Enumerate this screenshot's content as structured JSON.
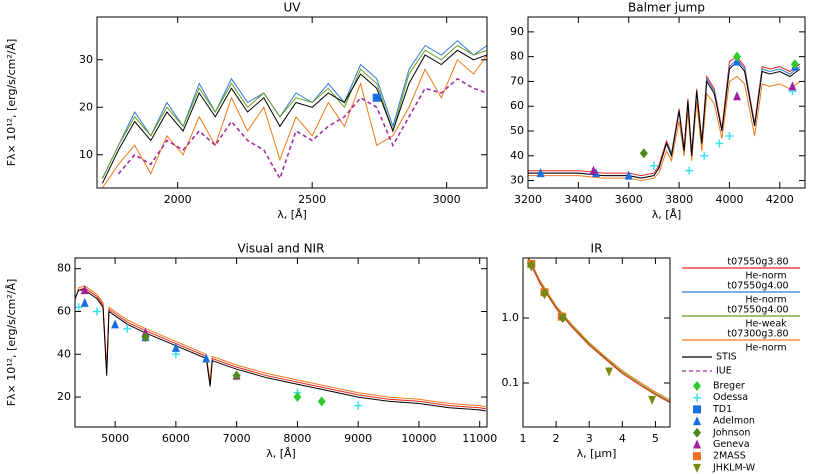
{
  "chart_data": [
    {
      "type": "line",
      "title": "UV",
      "xlabel": "λ, [Å]",
      "ylabel": "Fλ× 10¹², [erg/s/cm²/Å]",
      "xlim": [
        1700,
        3150
      ],
      "ylim": [
        3,
        39
      ],
      "xticks": [
        2000,
        2500,
        3000
      ],
      "yticks": [
        10,
        20,
        30
      ],
      "x": [
        1720,
        1780,
        1840,
        1900,
        1960,
        2020,
        2080,
        2140,
        2200,
        2260,
        2320,
        2380,
        2440,
        2500,
        2560,
        2620,
        2680,
        2740,
        2800,
        2860,
        2920,
        2980,
        3040,
        3100,
        3150
      ],
      "series": [
        {
          "color": "#f07a1a",
          "style": "line",
          "values": [
            3,
            8,
            12,
            6,
            14,
            10,
            18,
            12,
            22,
            15,
            20,
            9,
            18,
            14,
            21,
            16,
            25,
            12,
            14,
            20,
            28,
            22,
            30,
            27,
            31
          ]
        },
        {
          "color": "#2f7bd6",
          "style": "line",
          "values": [
            5,
            12,
            19,
            14,
            21,
            16,
            25,
            19,
            26,
            21,
            23,
            18,
            23,
            21,
            25,
            21,
            29,
            26,
            16,
            28,
            33,
            31,
            34,
            31,
            33
          ]
        },
        {
          "color": "#6a9c1e",
          "style": "line",
          "values": [
            5,
            12,
            18,
            14,
            20,
            16,
            24,
            19,
            25,
            20,
            23,
            18,
            22,
            21,
            24,
            20,
            28,
            25,
            15,
            27,
            32,
            30,
            33,
            31,
            32
          ]
        },
        {
          "color": "#000000",
          "style": "line",
          "values": [
            4,
            11,
            17,
            13,
            19,
            15,
            23,
            18,
            24,
            19,
            22,
            16,
            21,
            20,
            23,
            21,
            27,
            24,
            15,
            25,
            31,
            29,
            32,
            30,
            31
          ]
        },
        {
          "color": "#a030a0",
          "style": "dashed",
          "values": [
            null,
            6,
            10,
            8,
            13,
            11,
            15,
            12,
            17,
            13,
            11,
            5,
            15,
            13,
            16,
            18,
            22,
            20,
            12,
            18,
            24,
            23,
            26,
            24,
            23
          ]
        },
        {
          "color": "#1a6fe0",
          "style": "square",
          "x": [
            2740
          ],
          "values": [
            22
          ]
        }
      ]
    },
    {
      "type": "line",
      "title": "Balmer jump",
      "xlabel": "λ, [Å]",
      "xlim": [
        3200,
        4300
      ],
      "ylim": [
        27,
        96
      ],
      "xticks": [
        3200,
        3400,
        3600,
        3800,
        4000,
        4200
      ],
      "yticks": [
        30,
        40,
        50,
        60,
        70,
        80,
        90
      ],
      "x": [
        3200,
        3300,
        3400,
        3500,
        3600,
        3650,
        3700,
        3720,
        3750,
        3770,
        3800,
        3820,
        3835,
        3850,
        3870,
        3890,
        3910,
        3940,
        3970,
        4000,
        4030,
        4060,
        4100,
        4130,
        4160,
        4200,
        4240,
        4280
      ],
      "series": [
        {
          "color": "#f07a1a",
          "style": "line",
          "values": [
            32,
            32,
            32,
            31,
            31,
            30,
            31,
            33,
            42,
            38,
            54,
            40,
            58,
            38,
            62,
            42,
            65,
            61,
            47,
            70,
            72,
            69,
            48,
            69,
            68,
            69,
            67,
            70
          ]
        },
        {
          "color": "#e8231b",
          "style": "line",
          "values": [
            34,
            34,
            34,
            33,
            33,
            32,
            33,
            36,
            46,
            41,
            59,
            43,
            63,
            41,
            67,
            46,
            72,
            67,
            51,
            78,
            80,
            76,
            53,
            76,
            75,
            76,
            74,
            77
          ]
        },
        {
          "color": "#2f7bd6",
          "style": "line",
          "values": [
            33,
            33,
            33,
            32,
            32,
            31,
            32,
            35,
            45,
            41,
            58,
            42,
            62,
            41,
            66,
            45,
            71,
            66,
            50,
            76,
            79,
            75,
            52,
            75,
            74,
            75,
            73,
            76
          ]
        },
        {
          "color": "#000000",
          "style": "line",
          "values": [
            33,
            33,
            33,
            32,
            32,
            31,
            32,
            35,
            45,
            40,
            58,
            42,
            62,
            40,
            66,
            45,
            70,
            65,
            50,
            75,
            78,
            74,
            52,
            74,
            73,
            74,
            72,
            75
          ]
        },
        {
          "color": "#3fe0f0",
          "style": "plus",
          "x": [
            3700,
            3840,
            3900,
            3960,
            4000,
            4250
          ],
          "values": [
            36,
            34,
            40,
            45,
            48,
            66
          ]
        },
        {
          "color": "#1a6fe0",
          "style": "triangle",
          "x": [
            3250,
            3470,
            3600,
            4030,
            4260
          ],
          "values": [
            33,
            33,
            32,
            78,
            76
          ]
        },
        {
          "color": "#a020a0",
          "style": "triangle",
          "x": [
            3460,
            4030,
            4250
          ],
          "values": [
            34,
            64,
            68
          ]
        },
        {
          "color": "#4c8a1a",
          "style": "diamond",
          "x": [
            3660
          ],
          "values": [
            41
          ]
        },
        {
          "color": "#2ecc2e",
          "style": "diamond",
          "x": [
            4030,
            4260
          ],
          "values": [
            80,
            77
          ]
        }
      ]
    },
    {
      "type": "line",
      "title": "Visual and NIR",
      "xlabel": "λ, [Å]",
      "ylabel": "Fλ× 10¹², [erg/s/cm²/Å]",
      "xlim": [
        4340,
        11120
      ],
      "ylim": [
        6,
        85
      ],
      "xticks": [
        5000,
        6000,
        7000,
        8000,
        9000,
        10000,
        11000
      ],
      "yticks": [
        20,
        40,
        60,
        80
      ],
      "x": [
        4340,
        4400,
        4500,
        4600,
        4700,
        4800,
        4861,
        4900,
        5000,
        5200,
        5500,
        6000,
        6500,
        6563,
        6600,
        7000,
        7500,
        8000,
        8500,
        9000,
        9500,
        10000,
        10500,
        11000,
        11100
      ],
      "series": [
        {
          "color": "#f07a1a",
          "style": "line",
          "values": [
            65,
            71,
            72,
            70,
            68,
            64,
            33,
            62,
            60,
            56,
            52,
            46,
            40,
            27,
            39,
            35,
            31,
            28,
            25,
            22,
            20,
            19,
            17,
            16,
            15.5
          ]
        },
        {
          "color": "#e8231b",
          "style": "line",
          "values": [
            66,
            70,
            71,
            69,
            67,
            63,
            32,
            61,
            59,
            55,
            51,
            45,
            39,
            26,
            38,
            34,
            30,
            27,
            24,
            21,
            19,
            18,
            16,
            15,
            14.5
          ]
        },
        {
          "color": "#000000",
          "style": "line",
          "values": [
            66,
            70,
            70,
            68,
            66,
            62,
            30,
            60,
            58,
            54,
            50,
            44,
            38,
            25,
            37,
            33,
            29,
            26,
            23,
            20,
            18,
            17,
            15,
            14,
            13.5
          ]
        },
        {
          "color": "#3fe0f0",
          "style": "plus",
          "x": [
            4400,
            4700,
            5200,
            6000,
            7000,
            8000,
            9000
          ],
          "values": [
            62,
            60,
            52,
            40,
            30,
            22,
            16
          ]
        },
        {
          "color": "#1a6fe0",
          "style": "triangle",
          "x": [
            4500,
            5000,
            5500,
            6000,
            6500
          ],
          "values": [
            64,
            54,
            48,
            43,
            38
          ]
        },
        {
          "color": "#a020a0",
          "style": "triangle",
          "x": [
            4500,
            5500,
            7000
          ],
          "values": [
            70,
            50,
            30
          ]
        },
        {
          "color": "#4c8a1a",
          "style": "diamond",
          "x": [
            5500,
            7000
          ],
          "values": [
            48,
            30
          ]
        },
        {
          "color": "#2ecc2e",
          "style": "diamond",
          "x": [
            8000,
            8400
          ],
          "values": [
            20,
            18
          ]
        }
      ]
    },
    {
      "type": "line",
      "title": "IR",
      "xlabel": "λ, [μm]",
      "ylog": true,
      "xlim": [
        1,
        5.44
      ],
      "ylim": [
        0.021,
        8.4
      ],
      "xticks": [
        1,
        2,
        3,
        4,
        5
      ],
      "yticks": [
        0.1,
        {
          "value": 1,
          "label": "1.0"
        }
      ],
      "x": [
        1.15,
        1.25,
        1.5,
        2,
        2.5,
        3,
        3.5,
        4,
        4.5,
        5,
        5.44
      ],
      "series": [
        {
          "color": "#f07a1a",
          "style": "line",
          "values": [
            8.8,
            7.1,
            3.85,
            1.54,
            0.77,
            0.42,
            0.25,
            0.155,
            0.105,
            0.073,
            0.055
          ]
        },
        {
          "color": "#6a9c1e",
          "style": "line",
          "values": [
            8.4,
            6.8,
            3.65,
            1.47,
            0.73,
            0.4,
            0.24,
            0.147,
            0.1,
            0.069,
            0.052
          ]
        },
        {
          "color": "#e8231b",
          "style": "line",
          "values": [
            8.0,
            6.5,
            3.5,
            1.4,
            0.7,
            0.38,
            0.23,
            0.14,
            0.095,
            0.066,
            0.05
          ]
        },
        {
          "color": "#f07020",
          "style": "square",
          "x": [
            1.25,
            1.65,
            2.17
          ],
          "values": [
            6.8,
            2.5,
            1.05
          ]
        },
        {
          "color": "#4c8a1a",
          "style": "diamond",
          "x": [
            1.25,
            1.65,
            2.2
          ],
          "values": [
            6.5,
            2.4,
            1.0
          ]
        },
        {
          "color": "#7a8a10",
          "style": "triangle-down",
          "x": [
            1.25,
            1.65,
            2.2,
            3.6,
            4.9
          ],
          "values": [
            6.2,
            2.3,
            1.0,
            0.15,
            0.055
          ]
        }
      ]
    }
  ],
  "legend": {
    "entries": [
      {
        "name": "t07550g3.80",
        "subname": "He-norm",
        "color": "#e8231b",
        "style": "line"
      },
      {
        "name": "t07550g4.00",
        "subname": "He-norm",
        "color": "#2f7bd6",
        "style": "line"
      },
      {
        "name": "t07550g4.00",
        "subname": "He-weak",
        "color": "#6a9c1e",
        "style": "line"
      },
      {
        "name": "t07300g3.80",
        "subname": "He-norm",
        "color": "#f07a1a",
        "style": "line"
      },
      {
        "name": "STIS",
        "color": "#000000",
        "style": "line"
      },
      {
        "name": "IUE",
        "color": "#a030a0",
        "style": "dashed"
      },
      {
        "name": "Breger",
        "color": "#2ecc2e",
        "style": "diamond"
      },
      {
        "name": "Odessa",
        "color": "#3fe0f0",
        "style": "plus"
      },
      {
        "name": "TD1",
        "color": "#1a6fe0",
        "style": "square"
      },
      {
        "name": "Adelmon",
        "color": "#1a6fe0",
        "style": "triangle"
      },
      {
        "name": "Johnson",
        "color": "#4c8a1a",
        "style": "diamond"
      },
      {
        "name": "Geneva",
        "color": "#a020a0",
        "style": "triangle"
      },
      {
        "name": "2MASS",
        "color": "#f07020",
        "style": "square"
      },
      {
        "name": "JHKLM-W",
        "color": "#7a8a10",
        "style": "triangle-down"
      }
    ]
  }
}
